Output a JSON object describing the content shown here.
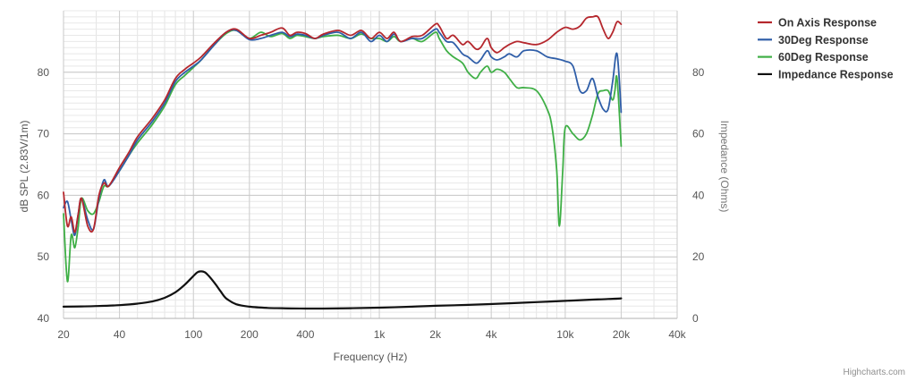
{
  "chart_data": {
    "type": "line",
    "title": "",
    "xlabel": "Frequency (Hz)",
    "ylabel": "dB SPL (2.83V/1m)",
    "y2label": "Impedance (Ohms)",
    "x_scale": "log",
    "xlim": [
      20,
      40000
    ],
    "ylim": [
      40,
      90
    ],
    "y2lim": [
      0,
      100
    ],
    "x_ticks": [
      20,
      40,
      100,
      200,
      400,
      1000,
      2000,
      4000,
      10000,
      20000,
      40000
    ],
    "x_tick_labels": [
      "20",
      "40",
      "100",
      "200",
      "400",
      "1k",
      "2k",
      "4k",
      "10k",
      "20k",
      "40k"
    ],
    "y_ticks": [
      40,
      50,
      60,
      70,
      80
    ],
    "y2_ticks": [
      0,
      20,
      40,
      60,
      80
    ],
    "grid": true,
    "legend_position": "top-right",
    "series": [
      {
        "name": "On Axis Response",
        "color": "#b5272d",
        "axis": "left",
        "x": [
          20,
          21,
          22,
          23,
          24,
          25,
          27,
          29,
          31,
          33,
          35,
          40,
          45,
          50,
          60,
          70,
          80,
          90,
          100,
          110,
          130,
          150,
          170,
          200,
          230,
          260,
          300,
          330,
          360,
          400,
          450,
          500,
          600,
          700,
          800,
          900,
          1000,
          1100,
          1200,
          1300,
          1500,
          1700,
          2000,
          2100,
          2300,
          2500,
          2800,
          3000,
          3300,
          3500,
          3800,
          4000,
          4300,
          4700,
          5000,
          5500,
          6000,
          7000,
          8000,
          9000,
          10000,
          11000,
          12000,
          13000,
          14000,
          15000,
          16000,
          17000,
          18000,
          19000,
          20000
        ],
        "values": [
          60.5,
          55,
          56.5,
          54,
          57,
          59.5,
          55,
          54.5,
          60,
          62,
          61.5,
          64.5,
          67,
          69.5,
          72.5,
          75.5,
          79,
          80.5,
          81.5,
          82.5,
          84.8,
          86.5,
          87,
          85.5,
          86,
          86.5,
          87.2,
          86,
          86.5,
          86.3,
          85.5,
          86.2,
          86.8,
          86,
          86.8,
          85.5,
          86.5,
          85.5,
          86.5,
          85,
          85.8,
          86,
          87.8,
          87.5,
          85.5,
          86,
          84.5,
          85,
          83.8,
          84,
          85.5,
          84,
          83.2,
          84,
          84.5,
          85,
          84.8,
          84.5,
          85.2,
          86.5,
          87.3,
          87,
          87.5,
          88.8,
          89,
          89,
          87,
          85.5,
          86.5,
          88.2,
          87.8
        ]
      },
      {
        "name": "30Deg Response",
        "color": "#2f5ea8",
        "axis": "left",
        "x": [
          20,
          21,
          22,
          23,
          24,
          25,
          27,
          29,
          31,
          33,
          35,
          40,
          45,
          50,
          60,
          70,
          80,
          90,
          100,
          110,
          130,
          150,
          170,
          200,
          230,
          260,
          300,
          330,
          360,
          400,
          450,
          500,
          600,
          700,
          800,
          900,
          1000,
          1100,
          1200,
          1300,
          1500,
          1700,
          2000,
          2100,
          2300,
          2500,
          2800,
          3000,
          3300,
          3500,
          3800,
          4000,
          4300,
          4700,
          5000,
          5500,
          6000,
          7000,
          8000,
          9000,
          10000,
          11000,
          12000,
          13000,
          14000,
          15000,
          16000,
          17000,
          18000,
          19000,
          20000
        ],
        "values": [
          58,
          59,
          56,
          53.5,
          57,
          59.5,
          56,
          54.5,
          59.5,
          62.5,
          61.5,
          64,
          66.5,
          69,
          72,
          75,
          78.5,
          80,
          81,
          82,
          84.5,
          86.5,
          86.8,
          85.3,
          85.5,
          86,
          86.5,
          85.8,
          86.2,
          86,
          85.5,
          86,
          86.5,
          85.5,
          86.5,
          85,
          86,
          85,
          86.2,
          85,
          85.5,
          85.5,
          87,
          86.5,
          85,
          84.8,
          83,
          82.5,
          81.5,
          82,
          83.5,
          82.5,
          82,
          82.5,
          83,
          82.5,
          83.5,
          83.5,
          82.5,
          82.2,
          81.8,
          81,
          77,
          77,
          79,
          76,
          74,
          74,
          78.5,
          83,
          73.5
        ]
      },
      {
        "name": "60Deg Response",
        "color": "#3faf46",
        "axis": "left",
        "x": [
          20,
          21,
          22,
          23,
          24,
          25,
          27,
          29,
          31,
          33,
          35,
          40,
          45,
          50,
          60,
          70,
          80,
          90,
          100,
          110,
          130,
          150,
          170,
          200,
          230,
          260,
          300,
          330,
          360,
          400,
          450,
          500,
          600,
          700,
          800,
          900,
          1000,
          1100,
          1200,
          1300,
          1500,
          1700,
          2000,
          2100,
          2300,
          2500,
          2800,
          3000,
          3300,
          3500,
          3800,
          4000,
          4300,
          4700,
          5000,
          5500,
          6000,
          7000,
          8000,
          8500,
          9000,
          9300,
          9700,
          10000,
          11000,
          12000,
          13000,
          14000,
          15000,
          16000,
          17000,
          18000,
          18500,
          19000,
          20000
        ],
        "values": [
          57,
          46,
          53.5,
          51.5,
          55,
          59.5,
          57.5,
          57,
          59,
          61.5,
          61.5,
          64,
          66.5,
          68.5,
          71.5,
          74.5,
          78,
          79.5,
          80.8,
          82,
          84.5,
          86.3,
          86.8,
          85.5,
          86.5,
          85.8,
          86.3,
          85.5,
          86,
          85.8,
          85.5,
          85.8,
          86,
          85.5,
          86.2,
          85.5,
          85.5,
          85,
          85.8,
          85,
          85.5,
          85,
          86.5,
          85.5,
          83.5,
          82.5,
          81.5,
          80,
          79,
          80,
          81,
          80,
          80.5,
          80,
          79,
          77.5,
          77.5,
          77,
          74,
          71,
          64,
          55,
          64,
          71,
          70,
          69,
          70,
          73,
          76.5,
          77,
          77,
          75.5,
          77,
          79,
          68
        ]
      },
      {
        "name": "Impedance Response",
        "color": "#111111",
        "axis": "right",
        "x": [
          20,
          25,
          30,
          40,
          50,
          60,
          70,
          80,
          90,
          100,
          105,
          110,
          115,
          120,
          130,
          140,
          150,
          170,
          200,
          250,
          300,
          400,
          500,
          700,
          1000,
          1500,
          2000,
          3000,
          5000,
          7000,
          10000,
          14000,
          17000,
          20000
        ],
        "values": [
          3.8,
          3.9,
          4,
          4.3,
          4.8,
          5.5,
          6.7,
          8.5,
          11,
          13.8,
          15,
          15.3,
          15,
          14,
          11.5,
          8.8,
          6.5,
          4.6,
          3.8,
          3.4,
          3.3,
          3.2,
          3.2,
          3.3,
          3.5,
          3.8,
          4.1,
          4.4,
          4.9,
          5.3,
          5.7,
          6.1,
          6.3,
          6.5
        ]
      }
    ]
  },
  "credits": "Highcharts.com"
}
